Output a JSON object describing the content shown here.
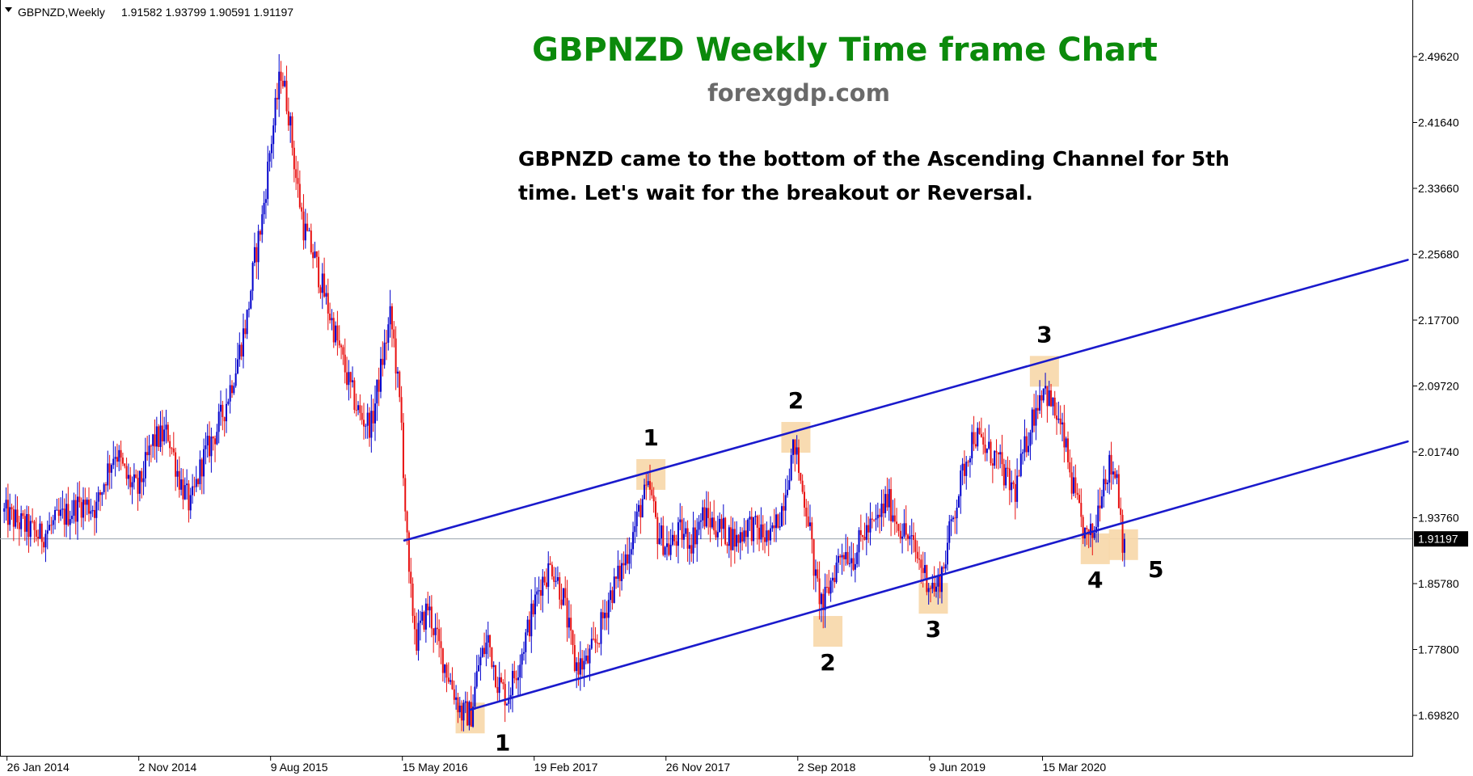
{
  "header": {
    "symbol_label": "GBPNZD,Weekly",
    "ohlc": "1.91582 1.93799 1.90591 1.91197"
  },
  "chart_data": {
    "type": "candlestick",
    "title": "GBPNZD Weekly Time frame Chart",
    "subtitle": "forexgdp.com",
    "annotation": "GBPNZD came to the bottom of the Ascending Channel for 5th time. Let's wait for the breakout or Reversal.",
    "annotation_lines": [
      "GBPNZD came to the bottom of the Ascending Channel for 5th",
      "time. Let's wait for the breakout or Reversal."
    ],
    "colors": {
      "bull": "#0000cc",
      "bear": "#e81010",
      "channel": "#1a1acc",
      "title": "#0b8a0b",
      "subtitle": "#6a6a6a",
      "highlight": "#f7d7a8",
      "current_line": "#9aa3ad"
    },
    "y_ticks": [
      "2.49620",
      "2.41640",
      "2.33660",
      "2.25680",
      "2.17700",
      "2.09720",
      "2.01740",
      "1.93760",
      "1.85780",
      "1.77800",
      "1.69820"
    ],
    "ylim": [
      1.655,
      2.545
    ],
    "x_ticks": [
      "26 Jan 2014",
      "2 Nov 2014",
      "9 Aug 2015",
      "15 May 2016",
      "19 Feb 2017",
      "26 Nov 2017",
      "2 Sep 2018",
      "9 Jun 2019",
      "15 Mar 2020"
    ],
    "current_price": 1.91197,
    "current_price_label": "1.91197",
    "price_path": [
      [
        0,
        1.945
      ],
      [
        10,
        1.93
      ],
      [
        20,
        1.915
      ],
      [
        30,
        1.935
      ],
      [
        42,
        1.955
      ],
      [
        50,
        1.95
      ],
      [
        55,
        1.99
      ],
      [
        60,
        2.02
      ],
      [
        66,
        1.985
      ],
      [
        72,
        1.97
      ],
      [
        80,
        2.03
      ],
      [
        88,
        2.04
      ],
      [
        94,
        1.985
      ],
      [
        100,
        1.95
      ],
      [
        106,
        2.005
      ],
      [
        114,
        2.045
      ],
      [
        118,
        2.07
      ],
      [
        124,
        2.12
      ],
      [
        130,
        2.18
      ],
      [
        134,
        2.25
      ],
      [
        138,
        2.3
      ],
      [
        142,
        2.38
      ],
      [
        145,
        2.43
      ],
      [
        148,
        2.48
      ],
      [
        152,
        2.43
      ],
      [
        156,
        2.35
      ],
      [
        160,
        2.29
      ],
      [
        166,
        2.25
      ],
      [
        172,
        2.2
      ],
      [
        178,
        2.15
      ],
      [
        184,
        2.1
      ],
      [
        190,
        2.06
      ],
      [
        196,
        2.05
      ],
      [
        202,
        2.13
      ],
      [
        206,
        2.18
      ],
      [
        208,
        2.15
      ],
      [
        212,
        2.05
      ],
      [
        214,
        1.95
      ],
      [
        216,
        1.86
      ],
      [
        220,
        1.79
      ],
      [
        226,
        1.83
      ],
      [
        232,
        1.78
      ],
      [
        238,
        1.74
      ],
      [
        244,
        1.7
      ],
      [
        249,
        1.7
      ],
      [
        253,
        1.76
      ],
      [
        258,
        1.79
      ],
      [
        263,
        1.74
      ],
      [
        268,
        1.72
      ],
      [
        274,
        1.76
      ],
      [
        280,
        1.81
      ],
      [
        286,
        1.86
      ],
      [
        292,
        1.88
      ],
      [
        298,
        1.84
      ],
      [
        304,
        1.76
      ],
      [
        310,
        1.76
      ],
      [
        316,
        1.79
      ],
      [
        322,
        1.84
      ],
      [
        328,
        1.87
      ],
      [
        334,
        1.91
      ],
      [
        340,
        1.96
      ],
      [
        344,
        1.97
      ],
      [
        348,
        1.92
      ],
      [
        354,
        1.9
      ],
      [
        360,
        1.92
      ],
      [
        366,
        1.91
      ],
      [
        372,
        1.94
      ],
      [
        378,
        1.93
      ],
      [
        384,
        1.92
      ],
      [
        390,
        1.91
      ],
      [
        396,
        1.93
      ],
      [
        402,
        1.92
      ],
      [
        408,
        1.91
      ],
      [
        414,
        1.95
      ],
      [
        418,
        2.0
      ],
      [
        421,
        2.025
      ],
      [
        424,
        1.98
      ],
      [
        428,
        1.94
      ],
      [
        432,
        1.86
      ],
      [
        436,
        1.83
      ],
      [
        440,
        1.86
      ],
      [
        446,
        1.9
      ],
      [
        452,
        1.89
      ],
      [
        458,
        1.92
      ],
      [
        464,
        1.93
      ],
      [
        470,
        1.96
      ],
      [
        476,
        1.93
      ],
      [
        482,
        1.91
      ],
      [
        488,
        1.88
      ],
      [
        492,
        1.86
      ],
      [
        496,
        1.85
      ],
      [
        500,
        1.88
      ],
      [
        504,
        1.93
      ],
      [
        508,
        1.97
      ],
      [
        512,
        2.01
      ],
      [
        516,
        2.04
      ],
      [
        522,
        2.02
      ],
      [
        528,
        2.01
      ],
      [
        534,
        1.98
      ],
      [
        538,
        1.97
      ],
      [
        542,
        2.01
      ],
      [
        546,
        2.05
      ],
      [
        550,
        2.08
      ],
      [
        553,
        2.1
      ],
      [
        556,
        2.08
      ],
      [
        560,
        2.06
      ],
      [
        564,
        2.03
      ],
      [
        568,
        1.98
      ],
      [
        572,
        1.94
      ],
      [
        576,
        1.91
      ],
      [
        580,
        1.92
      ],
      [
        584,
        1.98
      ],
      [
        588,
        2.0
      ],
      [
        592,
        1.99
      ],
      [
        595,
        1.912
      ]
    ],
    "channel": {
      "upper": [
        [
          213,
          1.91
        ],
        [
          746,
          2.25
        ]
      ],
      "lower": [
        [
          248,
          1.705
        ],
        [
          746,
          2.03
        ]
      ]
    },
    "swing_points": [
      {
        "label": "1",
        "t": 248,
        "y": 1.695,
        "label_pos": "below-right"
      },
      {
        "label": "2",
        "t": 438,
        "y": 1.8,
        "label_pos": "below"
      },
      {
        "label": "3",
        "t": 494,
        "y": 1.84,
        "label_pos": "below"
      },
      {
        "label": "4",
        "t": 580,
        "y": 1.9,
        "label_pos": "below"
      },
      {
        "label": "5",
        "t": 595,
        "y": 1.905,
        "label_pos": "below-right"
      },
      {
        "label": "1",
        "t": 344,
        "y": 1.99,
        "label_pos": "above"
      },
      {
        "label": "2",
        "t": 421,
        "y": 2.035,
        "label_pos": "above"
      },
      {
        "label": "3",
        "t": 553,
        "y": 2.115,
        "label_pos": "above"
      }
    ],
    "xlim": [
      0,
      748
    ],
    "x_tick_t": [
      2,
      72,
      142,
      212,
      282,
      352,
      422,
      492,
      552
    ],
    "grid": false,
    "legend": "none"
  }
}
